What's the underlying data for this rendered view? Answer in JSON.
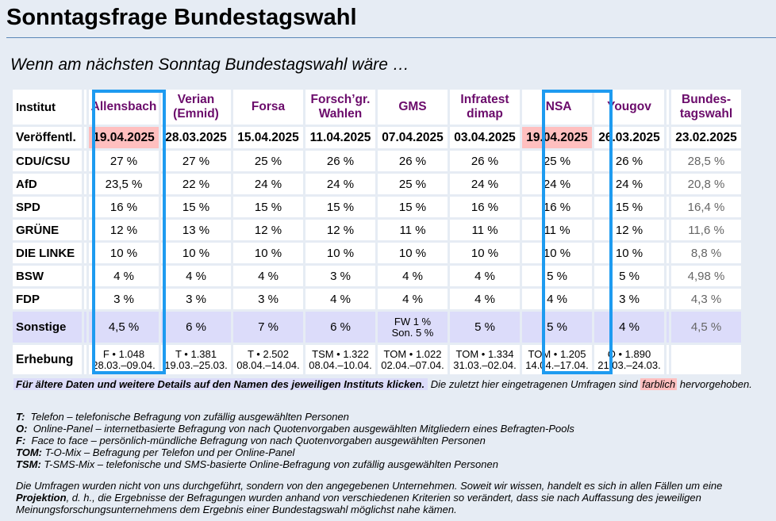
{
  "page": {
    "title": "Sonntagsfrage Bundestagswahl",
    "subtitle": "Wenn am nächsten Sonntag Bundestagswahl wäre …"
  },
  "table": {
    "row_labels": {
      "institut": "Institut",
      "published": "Veröffentl.",
      "survey": "Erhebung"
    },
    "institutes": [
      {
        "name": "Allensbach",
        "published": "19.04.2025",
        "recent": true,
        "survey_method": "F • 1.048",
        "survey_period": "28.03.–09.04.",
        "sonstige": "4,5 %"
      },
      {
        "name": "Verian (Emnid)",
        "published": "28.03.2025",
        "recent": false,
        "survey_method": "T • 1.381",
        "survey_period": "19.03.–25.03.",
        "sonstige": "6 %"
      },
      {
        "name": "Forsa",
        "published": "15.04.2025",
        "recent": false,
        "survey_method": "T • 2.502",
        "survey_period": "08.04.–14.04.",
        "sonstige": "7 %"
      },
      {
        "name": "Forsch’gr. Wahlen",
        "published": "11.04.2025",
        "recent": false,
        "survey_method": "TSM • 1.322",
        "survey_period": "08.04.–10.04.",
        "sonstige": "6 %"
      },
      {
        "name": "GMS",
        "published": "07.04.2025",
        "recent": false,
        "survey_method": "TOM • 1.022",
        "survey_period": "02.04.–07.04.",
        "sonstige": "FW 1 %",
        "sonstige_2": "Son. 5 %"
      },
      {
        "name": "Infratest dimap",
        "published": "03.04.2025",
        "recent": false,
        "survey_method": "TOM • 1.334",
        "survey_period": "31.03.–02.04.",
        "sonstige": "5 %"
      },
      {
        "name": "INSA",
        "published": "19.04.2025",
        "recent": true,
        "survey_method": "TOM • 1.205",
        "survey_period": "14.04.–17.04.",
        "sonstige": "5 %"
      },
      {
        "name": "Yougov",
        "published": "26.03.2025",
        "recent": false,
        "survey_method": "O • 1.890",
        "survey_period": "21.03.–24.03.",
        "sonstige": "4 %"
      }
    ],
    "election": {
      "name": "Bundes-tagswahl",
      "published": "23.02.2025",
      "sonstige": "4,5 %"
    },
    "parties": [
      {
        "name": "CDU/CSU",
        "values": [
          "27 %",
          "27 %",
          "25 %",
          "26 %",
          "26 %",
          "26 %",
          "25 %",
          "26 %"
        ],
        "election": "28,5 %"
      },
      {
        "name": "AfD",
        "values": [
          "23,5 %",
          "22 %",
          "24 %",
          "24 %",
          "25 %",
          "24 %",
          "24 %",
          "24 %"
        ],
        "election": "20,8 %"
      },
      {
        "name": "SPD",
        "values": [
          "16 %",
          "15 %",
          "15 %",
          "15 %",
          "15 %",
          "16 %",
          "16 %",
          "15 %"
        ],
        "election": "16,4 %"
      },
      {
        "name": "GRÜNE",
        "values": [
          "12 %",
          "13 %",
          "12 %",
          "12 %",
          "11 %",
          "11 %",
          "11 %",
          "12 %"
        ],
        "election": "11,6 %"
      },
      {
        "name": "DIE LINKE",
        "values": [
          "10 %",
          "10 %",
          "10 %",
          "10 %",
          "10 %",
          "10 %",
          "10 %",
          "10 %"
        ],
        "election": "8,8 %"
      },
      {
        "name": "BSW",
        "values": [
          "4 %",
          "4 %",
          "4 %",
          "3 %",
          "4 %",
          "4 %",
          "5 %",
          "5 %"
        ],
        "election": "4,98 %"
      },
      {
        "name": "FDP",
        "values": [
          "3 %",
          "3 %",
          "3 %",
          "4 %",
          "4 %",
          "4 %",
          "4 %",
          "3 %"
        ],
        "election": "4,3 %"
      }
    ],
    "sonstige_label": "Sonstige"
  },
  "notes": {
    "click_hint": "Für ältere Daten und weitere Details auf den Namen des jeweiligen Instituts klicken.",
    "recent_text_before": "Die zuletzt hier eingetragenen Umfragen sind",
    "recent_highlight": "farblich",
    "recent_text_after": "hervorgehoben."
  },
  "legend": [
    {
      "code": "T:",
      "text": "Telefon – telefonische Befragung von zufällig ausgewählten Personen"
    },
    {
      "code": "O:",
      "text": "Online-Panel – internetbasierte Befragung von nach Quotenvorgaben ausgewählten Mitgliedern eines Befragten-Pools"
    },
    {
      "code": "F:",
      "text": "Face to face – persönlich-mündliche Befragung von nach Quotenvorgaben ausgewählten Personen"
    },
    {
      "code": "TOM:",
      "text": "T-O-Mix – Befragung per Telefon und per Online-Panel"
    },
    {
      "code": "TSM:",
      "text": "T-SMS-Mix – telefonische und SMS-basierte Online-Befragung von zufällig ausgewählten Personen"
    }
  ],
  "disclaimer": {
    "part1": "Die Umfragen wurden nicht von uns durchgeführt, sondern von den angegebenen Unternehmen. Soweit wir wissen, handelt es sich in allen Fällen um eine",
    "bold": "Projektion",
    "part2": ", d. h., die Ergebnisse der Befragungen wurden anhand von verschiedenen Kriterien so verändert, dass sie nach Auffassung des jeweiligen Meinungsforschungsunternehmens dem Ergebnis einer Bundestagswahl möglichst nahe kämen."
  },
  "colors": {
    "institute_link": "#6b0b6b",
    "recent_highlight": "#ffbfbf",
    "sonstige_row": "#dcdcfa",
    "selection_box": "#1e9bf0",
    "page_background": "#e6ecf4",
    "election_text": "#666666"
  }
}
